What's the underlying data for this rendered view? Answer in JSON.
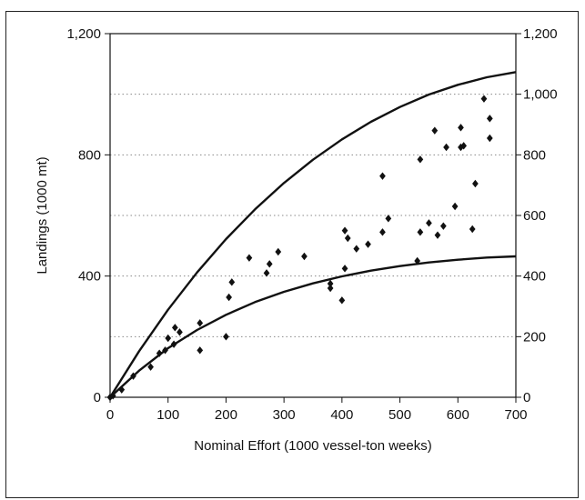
{
  "chart_data": {
    "type": "scatter",
    "title": "",
    "xlabel": "Nominal Effort (1000 vessel-ton weeks)",
    "ylabel": "Landings (1000 mt)",
    "xlim": [
      0,
      700
    ],
    "ylim": [
      0,
      1200
    ],
    "y2lim": [
      0,
      1200
    ],
    "xticks": [
      0,
      100,
      200,
      300,
      400,
      500,
      600,
      700
    ],
    "xtick_labels": [
      "0",
      "100",
      "200",
      "300",
      "400",
      "500",
      "600",
      "700"
    ],
    "yticks": [
      0,
      400,
      800,
      1200
    ],
    "ytick_labels": [
      "0",
      "400",
      "800",
      "1,200"
    ],
    "y2ticks": [
      0,
      200,
      400,
      600,
      800,
      1000,
      1200
    ],
    "y2tick_labels": [
      "0",
      "200",
      "400",
      "600",
      "800",
      "1,000",
      "1,200"
    ],
    "grid": "horizontal dotted at right-axis ticks",
    "marker": "diamond",
    "series": [
      {
        "x": [
          0,
          5,
          20,
          40,
          70,
          85,
          95,
          100,
          110,
          112,
          120,
          155,
          155,
          200,
          205,
          210,
          240,
          270,
          275,
          290,
          335,
          380,
          380,
          400,
          405,
          405,
          410,
          425,
          445,
          470,
          470,
          480,
          530,
          535,
          535,
          550,
          560,
          565,
          575,
          580,
          595,
          605,
          605,
          610,
          625,
          630,
          645,
          655,
          655
        ],
        "y": [
          0,
          5,
          25,
          70,
          100,
          145,
          155,
          195,
          175,
          230,
          215,
          155,
          245,
          200,
          330,
          380,
          460,
          410,
          440,
          480,
          465,
          360,
          375,
          320,
          550,
          425,
          525,
          490,
          505,
          730,
          545,
          590,
          450,
          545,
          785,
          575,
          880,
          535,
          565,
          825,
          630,
          890,
          825,
          830,
          555,
          705,
          985,
          920,
          855
        ]
      }
    ],
    "curves": [
      {
        "x": [
          0,
          50,
          100,
          150,
          200,
          250,
          300,
          350,
          400,
          450,
          500,
          550,
          600,
          650,
          700
        ],
        "y": [
          0,
          152,
          289,
          412,
          522,
          620,
          707,
          784,
          851,
          909,
          958,
          999,
          1031,
          1056,
          1073
        ]
      },
      {
        "x": [
          0,
          50,
          100,
          150,
          200,
          250,
          300,
          350,
          400,
          450,
          500,
          550,
          600,
          650,
          700
        ],
        "y": [
          0,
          88,
          162,
          222,
          272,
          314,
          348,
          376,
          399,
          418,
          433,
          445,
          454,
          461,
          465
        ]
      }
    ]
  }
}
